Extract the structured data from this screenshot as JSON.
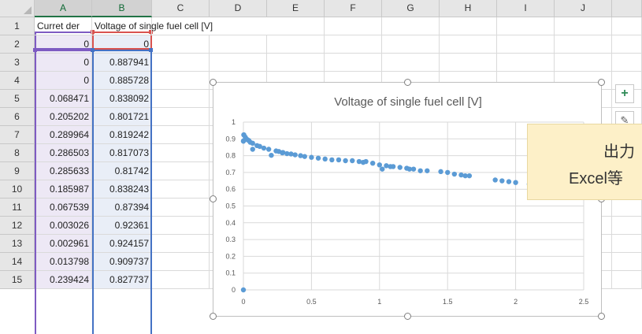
{
  "spreadsheet": {
    "column_headers": [
      "A",
      "B",
      "C",
      "D",
      "E",
      "F",
      "G",
      "H",
      "I",
      "J"
    ],
    "row_headers": [
      "1",
      "2",
      "3",
      "4",
      "5",
      "6",
      "7",
      "8",
      "9",
      "10",
      "11",
      "12",
      "13",
      "14",
      "15"
    ],
    "header_row": {
      "A": "Curret der",
      "B": "Voltage of single fuel cell [V]"
    },
    "rows": [
      [
        "0",
        "0"
      ],
      [
        "0",
        "0.887941"
      ],
      [
        "0",
        "0.885728"
      ],
      [
        "0.068471",
        "0.838092"
      ],
      [
        "0.205202",
        "0.801721"
      ],
      [
        "0.289964",
        "0.819242"
      ],
      [
        "0.286503",
        "0.817073"
      ],
      [
        "0.285633",
        "0.81742"
      ],
      [
        "0.185987",
        "0.838243"
      ],
      [
        "0.067539",
        "0.87394"
      ],
      [
        "0.003026",
        "0.92361"
      ],
      [
        "0.002961",
        "0.924157"
      ],
      [
        "0.013798",
        "0.909737"
      ],
      [
        "0.239424",
        "0.827737"
      ]
    ]
  },
  "chart_data": {
    "type": "scatter",
    "title": "Voltage of single fuel cell [V]",
    "xlabel": "",
    "ylabel": "",
    "xlim": [
      0,
      2.5
    ],
    "ylim": [
      0,
      1
    ],
    "x_ticks": [
      "0",
      "0.5",
      "1",
      "1.5",
      "2",
      "2.5"
    ],
    "y_ticks": [
      "0",
      "0.1",
      "0.2",
      "0.3",
      "0.4",
      "0.5",
      "0.6",
      "0.7",
      "0.8",
      "0.9",
      "1"
    ],
    "grid": true,
    "marker_color": "#5b9bd5",
    "points": [
      [
        0,
        0
      ],
      [
        0,
        0.888
      ],
      [
        0,
        0.886
      ],
      [
        0.003,
        0.924
      ],
      [
        0.003,
        0.924
      ],
      [
        0.014,
        0.91
      ],
      [
        0.02,
        0.9
      ],
      [
        0.03,
        0.895
      ],
      [
        0.04,
        0.89
      ],
      [
        0.05,
        0.88
      ],
      [
        0.068,
        0.874
      ],
      [
        0.068,
        0.838
      ],
      [
        0.1,
        0.86
      ],
      [
        0.12,
        0.855
      ],
      [
        0.15,
        0.845
      ],
      [
        0.186,
        0.838
      ],
      [
        0.205,
        0.802
      ],
      [
        0.24,
        0.828
      ],
      [
        0.26,
        0.825
      ],
      [
        0.286,
        0.817
      ],
      [
        0.286,
        0.817
      ],
      [
        0.29,
        0.819
      ],
      [
        0.32,
        0.812
      ],
      [
        0.35,
        0.81
      ],
      [
        0.38,
        0.805
      ],
      [
        0.42,
        0.8
      ],
      [
        0.45,
        0.795
      ],
      [
        0.5,
        0.79
      ],
      [
        0.55,
        0.785
      ],
      [
        0.6,
        0.78
      ],
      [
        0.65,
        0.775
      ],
      [
        0.7,
        0.775
      ],
      [
        0.75,
        0.77
      ],
      [
        0.8,
        0.77
      ],
      [
        0.85,
        0.765
      ],
      [
        0.88,
        0.76
      ],
      [
        0.9,
        0.765
      ],
      [
        0.95,
        0.755
      ],
      [
        1.0,
        0.745
      ],
      [
        1.02,
        0.72
      ],
      [
        1.05,
        0.74
      ],
      [
        1.08,
        0.735
      ],
      [
        1.1,
        0.735
      ],
      [
        1.15,
        0.73
      ],
      [
        1.2,
        0.725
      ],
      [
        1.22,
        0.72
      ],
      [
        1.25,
        0.72
      ],
      [
        1.3,
        0.71
      ],
      [
        1.35,
        0.71
      ],
      [
        1.45,
        0.705
      ],
      [
        1.5,
        0.7
      ],
      [
        1.55,
        0.69
      ],
      [
        1.6,
        0.685
      ],
      [
        1.63,
        0.68
      ],
      [
        1.66,
        0.68
      ],
      [
        1.85,
        0.655
      ],
      [
        1.9,
        0.65
      ],
      [
        1.95,
        0.645
      ],
      [
        2.0,
        0.64
      ],
      [
        2.1,
        0.63
      ],
      [
        2.15,
        0.625
      ]
    ]
  },
  "side_buttons": {
    "add_elements_glyph": "+",
    "styles_glyph": "✎"
  },
  "tooltip": {
    "line1": "出力",
    "line2": "Excel等"
  }
}
